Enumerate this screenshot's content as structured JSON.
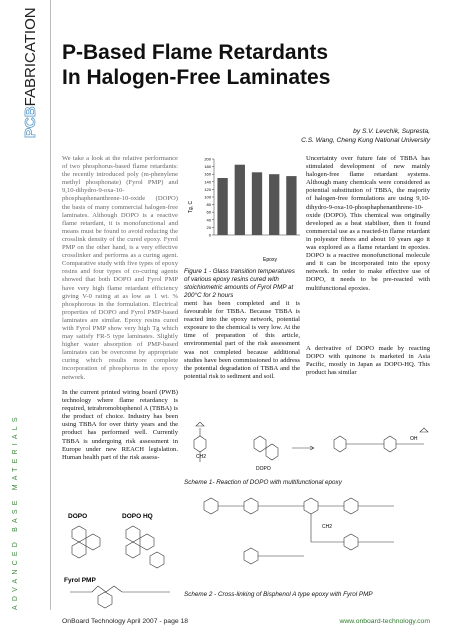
{
  "sidebar": {
    "brand_a": "PCB",
    "brand_b": "FABRICATION",
    "section": "ADVANCED BASE MATERIALS"
  },
  "header": {
    "title_line1": "P-Based Flame Retardants",
    "title_line2": "In Halogen-Free Laminates",
    "byline1": "by S.V. Levchik, Supresta,",
    "byline2": "C.S. Wang, Cheng Kung National University"
  },
  "column1": {
    "abstract": "We take a look at the relative performance of two phosphorus-based flame retardants: the recently introduced poly (m-phenylene methyl phosphonate) (Fyrol PMP) and 9,10-dihydro-9-oxa-10-phosphaphenanthrene-10-oxide (DOPO) the basis of many commercial halogen-free laminates. Although DOPO is a reactive flame retardant, it is monofunctional and means must be found to avoid reducing the crosslink density of the cured epoxy. Fyrol PMP on the other hand, is a very effective crosslinker and performs as a curing agent. Comparative study with five types of epoxy resins and four types of co-curing agents showed that both DOPO and Fyrol PMP have very high flame retardant efficiency giving V-0 rating at as low as 1 wt. % phosphorous in the formulation. Electrical properties of DOPO and Fyrol PMP-based laminates are similar. Epoxy resins cured with Fyrol PMP show very high Tg which may satisfy FR-5 type laminates. Slightly higher water absorption of PMP-based laminates can be overcome by appropriate curing which results more complete incorporation of phosphorus in the epoxy network.",
    "body": "In the current printed wiring board (PWB) technology where flame retardancy is required, tetrabromobisphenol A (TBBA) is the product of choice. Industry has been using TBBA for over thirty years and the product has performed well. Currently TBBA is undergoing risk assessment in Europe under new REACH legislation. Human health part of the risk assess-"
  },
  "figure1": {
    "ylabel": "Tg, C",
    "xlabel": "Epoxy",
    "values": [
      150,
      185,
      165,
      160,
      155
    ],
    "ylim": [
      0,
      200
    ],
    "yticks": [
      0,
      20,
      40,
      60,
      80,
      100,
      120,
      140,
      160,
      180,
      200
    ],
    "color": "#555555",
    "caption": "Figure 1 - Glass transition temperatures of various epoxy resins cured with stoichiometric amounts of Fyrol PMP at 200°C for 2 hours"
  },
  "column2": {
    "body": "ment has been completed and it is favourable for TBBA. Because TBBA is reacted into the epoxy network, potential exposure to the chemical is very low. At the time of preparation of this article, environmental part of the risk assessment was not completed because additional studies have been commissioned to address the potential degradation of TBBA and the potential risk to sediment and soil."
  },
  "column3": {
    "body1": "Uncertainty over future fate of TBBA has stimulated development of new mainly halogen-free flame retardant systems. Although many chemicals were considered as potential substitution of TBBA, the majority of halogen-free formulations are using 9,10-dihydro-9-oxa-10-phosphaphenanthrene-10-oxide (DOPO). This chemical was originally developed as a heat stabiliser, then it found commercial use as a reacted-in flame retardant in polyester fibres and about 10 years ago it was explored as a flame retardant in epoxies. DOPO is a reactive monofunctional molecule and it can be incorporated into the epoxy network. In order to make effective use of DOPO, it needs to be pre-reacted with multifunctional epoxies.",
    "body2": "A derivative of DOPO made by reacting DOPO with quinone is marketed in Asia Pacific, mostly in Japan as DOPO-HQ. This product has similar"
  },
  "structures": {
    "dopo": "DOPO",
    "dopo_hq": "DOPO HQ",
    "fyrol": "Fyrol PMP",
    "scheme_dopo": "DOPO",
    "ch2": "CH2",
    "oh": "OH"
  },
  "scheme1": {
    "caption": "Scheme 1- Reaction of DOPO with multifunctional epoxy"
  },
  "scheme2": {
    "caption": "Scheme 2 - Cross-linking of Bisphenol A type epoxy with Fyrol PMP"
  },
  "footer": {
    "left": "OnBoard Technology April 2007 - page 18",
    "right": "www.onboard-technology.com"
  }
}
